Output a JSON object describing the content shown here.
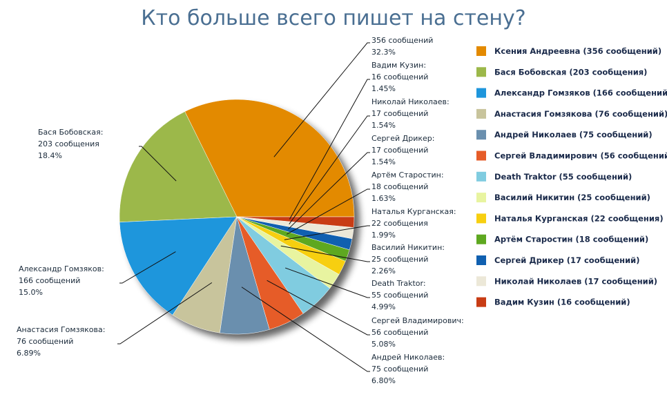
{
  "chart_data": {
    "type": "pie",
    "title": "Кто больше всего пишет на стену?",
    "categories": [
      "Ксения Андреевна (356 сообщений)",
      "Бася Бобовская (203 сообщения)",
      "Александр Гомзяков (166 сообщений)",
      "Анастасия Гомзякова (76 сообщений)",
      "Андрей Николаев (75 сообщений)",
      "Сергей Владимирович (56 сообщений)",
      "Death Traktor (55 сообщений)",
      "Василий Никитин (25 сообщений)",
      "Наталья Курганская (22 сообщения)",
      "Артём Старостин (18 сообщений)",
      "Сергей Дрикер (17 сообщений)",
      "Николай Николаев (17 сообщений)",
      "Вадим Кузин (16 сообщений)"
    ],
    "callout_names": [
      null,
      "Бася Бобовская:",
      "Александр Гомзяков:",
      "Анастасия Гомзякова:",
      "Андрей Николаев:",
      "Сергей Владимирович:",
      "Death Traktor:",
      "Василий Никитин:",
      "Наталья Курганская:",
      "Артём Старостин:",
      "Сергей Дрикер:",
      "Николай Николаев:",
      "Вадим Кузин:"
    ],
    "values": [
      356,
      203,
      166,
      76,
      75,
      56,
      55,
      25,
      22,
      18,
      17,
      17,
      16
    ],
    "value_labels": [
      "356 сообщений",
      "203 сообщения",
      "166 сообщений",
      "76 сообщений",
      "75 сообщений",
      "56 сообщений",
      "55 сообщений",
      "25 сообщений",
      "22 сообщения",
      "18 сообщений",
      "17 сообщений",
      "17 сообщений",
      "16 сообщений"
    ],
    "percent_labels": [
      "32.3%",
      "18.4%",
      "15.0%",
      "6.89%",
      "6.80%",
      "5.08%",
      "4.99%",
      "2.26%",
      "1.99%",
      "1.63%",
      "1.54%",
      "1.54%",
      "1.45%"
    ],
    "colors": [
      "#e38a00",
      "#9cb84a",
      "#1e96dc",
      "#c8c49c",
      "#6a8fae",
      "#e65c28",
      "#80cce0",
      "#e8f4a0",
      "#f7cf10",
      "#5ea820",
      "#1060b0",
      "#ece8d8",
      "#c83c14"
    ]
  }
}
